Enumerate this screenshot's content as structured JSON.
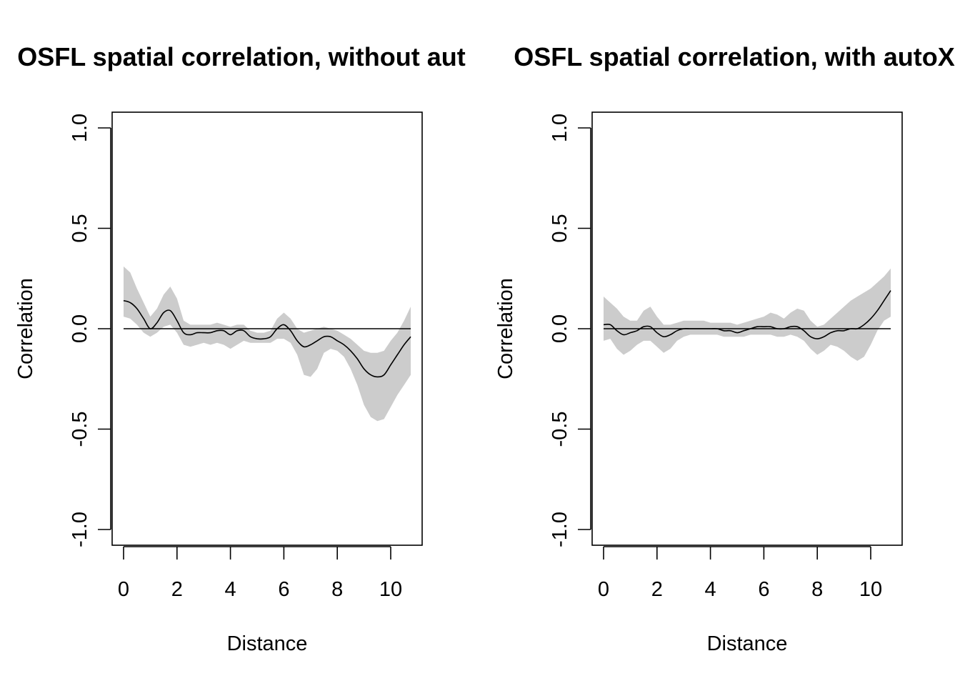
{
  "colors": {
    "band": "#cccccc",
    "line": "#000000",
    "axis": "#000000",
    "background": "#ffffff"
  },
  "chart_data": [
    {
      "type": "line",
      "title": "OSFL spatial correlation, without aut",
      "xlabel": "Distance",
      "ylabel": "Correlation",
      "xlim": [
        0,
        10.75
      ],
      "ylim": [
        -1,
        1
      ],
      "x_ticks": [
        "0",
        "2",
        "4",
        "6",
        "8",
        "10"
      ],
      "y_ticks": [
        "-1.0",
        "-0.5",
        "0.0",
        "0.5",
        "1.0"
      ],
      "grid": false,
      "reference_line_y": 0,
      "x": [
        0,
        0.25,
        0.5,
        0.75,
        1.0,
        1.25,
        1.5,
        1.75,
        2.0,
        2.25,
        2.5,
        2.75,
        3.0,
        3.25,
        3.5,
        3.75,
        4.0,
        4.25,
        4.5,
        4.75,
        5.0,
        5.25,
        5.5,
        5.75,
        6.0,
        6.25,
        6.5,
        6.75,
        7.0,
        7.25,
        7.5,
        7.75,
        8.0,
        8.25,
        8.5,
        8.75,
        9.0,
        9.25,
        9.5,
        9.75,
        10.0,
        10.25,
        10.5,
        10.75
      ],
      "series": [
        {
          "values": [
            0.14,
            0.13,
            0.1,
            0.05,
            0.0,
            0.03,
            0.08,
            0.09,
            0.04,
            -0.02,
            -0.03,
            -0.02,
            -0.02,
            -0.02,
            -0.01,
            -0.01,
            -0.03,
            -0.01,
            -0.01,
            -0.04,
            -0.05,
            -0.05,
            -0.04,
            0.0,
            0.02,
            -0.01,
            -0.06,
            -0.09,
            -0.08,
            -0.06,
            -0.04,
            -0.04,
            -0.06,
            -0.08,
            -0.11,
            -0.15,
            -0.2,
            -0.23,
            -0.24,
            -0.23,
            -0.18,
            -0.13,
            -0.08,
            -0.04
          ],
          "lower": [
            0.06,
            0.05,
            0.02,
            -0.02,
            -0.04,
            -0.02,
            0.01,
            0.02,
            -0.02,
            -0.08,
            -0.09,
            -0.08,
            -0.07,
            -0.08,
            -0.07,
            -0.08,
            -0.1,
            -0.08,
            -0.06,
            -0.07,
            -0.07,
            -0.07,
            -0.07,
            -0.05,
            -0.05,
            -0.07,
            -0.13,
            -0.23,
            -0.24,
            -0.2,
            -0.12,
            -0.1,
            -0.11,
            -0.14,
            -0.2,
            -0.28,
            -0.38,
            -0.44,
            -0.46,
            -0.45,
            -0.39,
            -0.33,
            -0.28,
            -0.23
          ],
          "upper": [
            0.31,
            0.28,
            0.2,
            0.13,
            0.06,
            0.1,
            0.17,
            0.21,
            0.15,
            0.04,
            0.02,
            0.02,
            0.02,
            0.02,
            0.03,
            0.02,
            0.01,
            0.02,
            0.02,
            -0.01,
            -0.02,
            -0.02,
            -0.01,
            0.05,
            0.08,
            0.05,
            0.0,
            -0.02,
            -0.01,
            0.0,
            0.01,
            0.0,
            -0.01,
            -0.03,
            -0.05,
            -0.08,
            -0.11,
            -0.12,
            -0.12,
            -0.11,
            -0.06,
            -0.02,
            0.04,
            0.11
          ]
        }
      ]
    },
    {
      "type": "line",
      "title": "OSFL spatial correlation, with autoX",
      "xlabel": "Distance",
      "ylabel": "Correlation",
      "xlim": [
        0,
        10.75
      ],
      "ylim": [
        -1,
        1
      ],
      "x_ticks": [
        "0",
        "2",
        "4",
        "6",
        "8",
        "10"
      ],
      "y_ticks": [
        "-1.0",
        "-0.5",
        "0.0",
        "0.5",
        "1.0"
      ],
      "grid": false,
      "reference_line_y": 0,
      "x": [
        0,
        0.25,
        0.5,
        0.75,
        1.0,
        1.25,
        1.5,
        1.75,
        2.0,
        2.25,
        2.5,
        2.75,
        3.0,
        3.25,
        3.5,
        3.75,
        4.0,
        4.25,
        4.5,
        4.75,
        5.0,
        5.25,
        5.5,
        5.75,
        6.0,
        6.25,
        6.5,
        6.75,
        7.0,
        7.25,
        7.5,
        7.75,
        8.0,
        8.25,
        8.5,
        8.75,
        9.0,
        9.25,
        9.5,
        9.75,
        10.0,
        10.25,
        10.5,
        10.75
      ],
      "series": [
        {
          "values": [
            0.02,
            0.02,
            -0.01,
            -0.03,
            -0.02,
            -0.01,
            0.01,
            0.01,
            -0.02,
            -0.04,
            -0.03,
            -0.01,
            0.0,
            0.0,
            0.0,
            0.0,
            0.0,
            0.0,
            -0.01,
            -0.01,
            -0.02,
            -0.01,
            0.0,
            0.01,
            0.01,
            0.01,
            0.0,
            0.0,
            0.01,
            0.01,
            -0.01,
            -0.04,
            -0.05,
            -0.04,
            -0.02,
            -0.01,
            -0.01,
            0.0,
            0.0,
            0.02,
            0.05,
            0.09,
            0.14,
            0.19
          ],
          "lower": [
            -0.06,
            -0.05,
            -0.1,
            -0.13,
            -0.11,
            -0.08,
            -0.06,
            -0.06,
            -0.09,
            -0.12,
            -0.1,
            -0.06,
            -0.04,
            -0.03,
            -0.03,
            -0.03,
            -0.03,
            -0.03,
            -0.04,
            -0.04,
            -0.04,
            -0.04,
            -0.03,
            -0.03,
            -0.03,
            -0.03,
            -0.04,
            -0.04,
            -0.03,
            -0.04,
            -0.06,
            -0.1,
            -0.13,
            -0.11,
            -0.08,
            -0.09,
            -0.11,
            -0.14,
            -0.16,
            -0.14,
            -0.08,
            -0.01,
            0.04,
            0.06
          ],
          "upper": [
            0.16,
            0.13,
            0.1,
            0.06,
            0.04,
            0.04,
            0.09,
            0.11,
            0.06,
            0.02,
            0.02,
            0.03,
            0.04,
            0.04,
            0.04,
            0.04,
            0.03,
            0.03,
            0.03,
            0.03,
            0.02,
            0.03,
            0.04,
            0.05,
            0.06,
            0.08,
            0.07,
            0.05,
            0.08,
            0.1,
            0.09,
            0.04,
            0.01,
            0.02,
            0.05,
            0.08,
            0.11,
            0.14,
            0.16,
            0.18,
            0.2,
            0.23,
            0.26,
            0.3
          ]
        }
      ]
    }
  ]
}
